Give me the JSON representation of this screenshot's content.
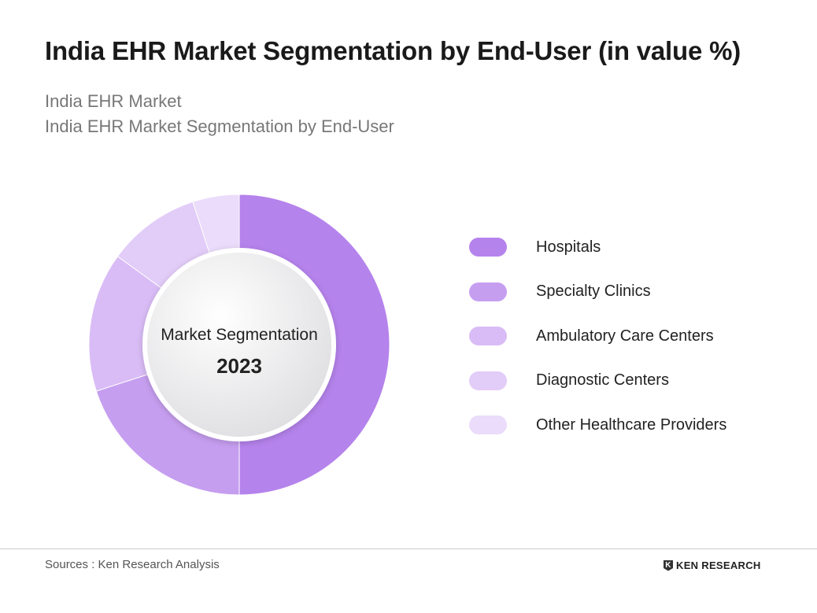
{
  "title": "India EHR Market Segmentation by End-User (in value %)",
  "subtitle_1": "India EHR Market",
  "subtitle_2": "India EHR Market Segmentation by End-User",
  "chart_data": {
    "type": "pie",
    "variant": "donut",
    "center_label": "Market Segmentation",
    "center_year": "2023",
    "categories": [
      "Hospitals",
      "Specialty Clinics",
      "Ambulatory Care Centers",
      "Diagnostic Centers",
      "Other Healthcare Providers"
    ],
    "values": [
      50,
      20,
      15,
      10,
      5
    ],
    "unit": "%",
    "colors": [
      "#b583ec",
      "#c69ef0",
      "#d9bcf6",
      "#e2ccf8",
      "#eadcfa"
    ],
    "legend_position": "right"
  },
  "footer": {
    "source": "Sources : Ken Research Analysis",
    "logo_text": "KEN RESEARCH"
  }
}
